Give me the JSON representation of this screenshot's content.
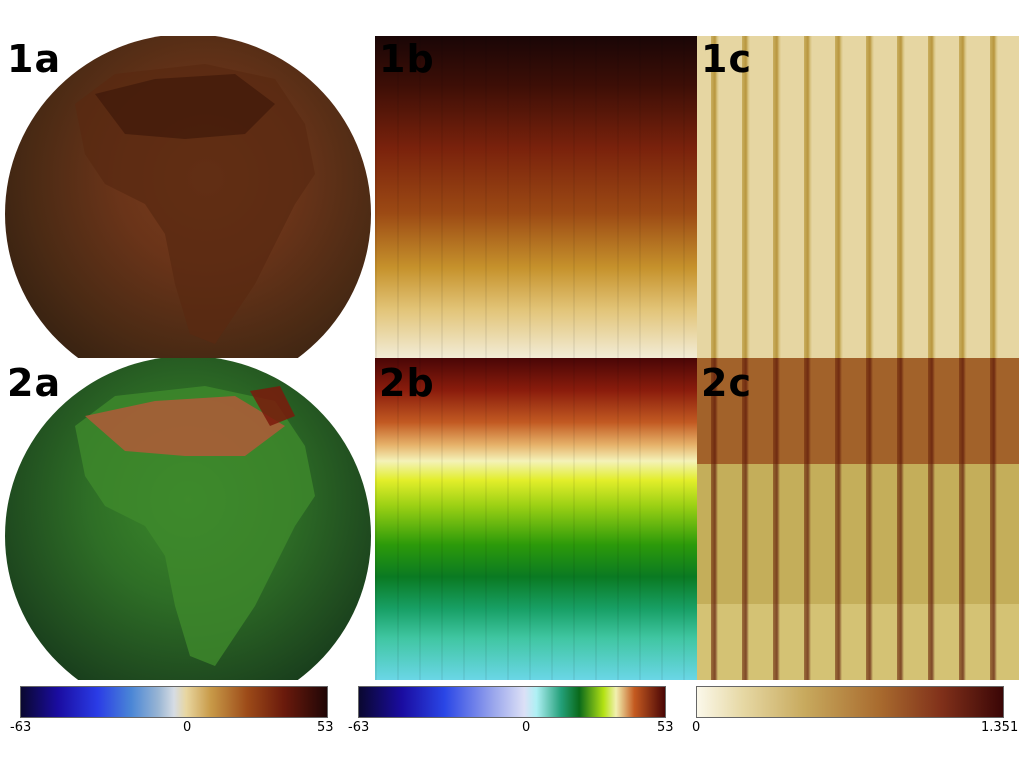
{
  "panels": {
    "p1a": "1a",
    "p1b": "1b",
    "p1c": "1c",
    "p2a": "2a",
    "p2b": "2b",
    "p2c": "2c"
  },
  "colorbars": [
    {
      "min": "-63",
      "mid": "0",
      "max": "53"
    },
    {
      "min": "-63",
      "mid": "0",
      "max": "53"
    },
    {
      "min": "0",
      "max": "1.351"
    }
  ]
}
